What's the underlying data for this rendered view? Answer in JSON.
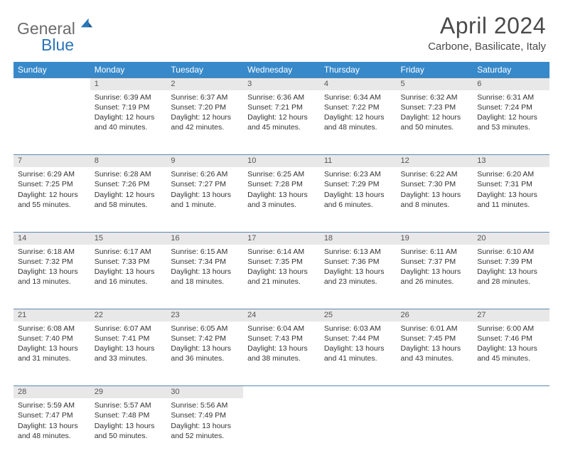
{
  "logo": {
    "text1": "General",
    "text2": "Blue"
  },
  "title": "April 2024",
  "location": "Carbone, Basilicate, Italy",
  "colors": {
    "header_bg": "#3789ca",
    "header_fg": "#ffffff",
    "daynum_bg": "#e8e8e8",
    "rule": "#5a88b0",
    "logo_gray": "#6b6b6b",
    "logo_blue": "#2a74b8",
    "text": "#333333"
  },
  "weekdays": [
    "Sunday",
    "Monday",
    "Tuesday",
    "Wednesday",
    "Thursday",
    "Friday",
    "Saturday"
  ],
  "weeks": [
    [
      null,
      {
        "n": "1",
        "sr": "6:39 AM",
        "ss": "7:19 PM",
        "dl": "12 hours and 40 minutes."
      },
      {
        "n": "2",
        "sr": "6:37 AM",
        "ss": "7:20 PM",
        "dl": "12 hours and 42 minutes."
      },
      {
        "n": "3",
        "sr": "6:36 AM",
        "ss": "7:21 PM",
        "dl": "12 hours and 45 minutes."
      },
      {
        "n": "4",
        "sr": "6:34 AM",
        "ss": "7:22 PM",
        "dl": "12 hours and 48 minutes."
      },
      {
        "n": "5",
        "sr": "6:32 AM",
        "ss": "7:23 PM",
        "dl": "12 hours and 50 minutes."
      },
      {
        "n": "6",
        "sr": "6:31 AM",
        "ss": "7:24 PM",
        "dl": "12 hours and 53 minutes."
      }
    ],
    [
      {
        "n": "7",
        "sr": "6:29 AM",
        "ss": "7:25 PM",
        "dl": "12 hours and 55 minutes."
      },
      {
        "n": "8",
        "sr": "6:28 AM",
        "ss": "7:26 PM",
        "dl": "12 hours and 58 minutes."
      },
      {
        "n": "9",
        "sr": "6:26 AM",
        "ss": "7:27 PM",
        "dl": "13 hours and 1 minute."
      },
      {
        "n": "10",
        "sr": "6:25 AM",
        "ss": "7:28 PM",
        "dl": "13 hours and 3 minutes."
      },
      {
        "n": "11",
        "sr": "6:23 AM",
        "ss": "7:29 PM",
        "dl": "13 hours and 6 minutes."
      },
      {
        "n": "12",
        "sr": "6:22 AM",
        "ss": "7:30 PM",
        "dl": "13 hours and 8 minutes."
      },
      {
        "n": "13",
        "sr": "6:20 AM",
        "ss": "7:31 PM",
        "dl": "13 hours and 11 minutes."
      }
    ],
    [
      {
        "n": "14",
        "sr": "6:18 AM",
        "ss": "7:32 PM",
        "dl": "13 hours and 13 minutes."
      },
      {
        "n": "15",
        "sr": "6:17 AM",
        "ss": "7:33 PM",
        "dl": "13 hours and 16 minutes."
      },
      {
        "n": "16",
        "sr": "6:15 AM",
        "ss": "7:34 PM",
        "dl": "13 hours and 18 minutes."
      },
      {
        "n": "17",
        "sr": "6:14 AM",
        "ss": "7:35 PM",
        "dl": "13 hours and 21 minutes."
      },
      {
        "n": "18",
        "sr": "6:13 AM",
        "ss": "7:36 PM",
        "dl": "13 hours and 23 minutes."
      },
      {
        "n": "19",
        "sr": "6:11 AM",
        "ss": "7:37 PM",
        "dl": "13 hours and 26 minutes."
      },
      {
        "n": "20",
        "sr": "6:10 AM",
        "ss": "7:39 PM",
        "dl": "13 hours and 28 minutes."
      }
    ],
    [
      {
        "n": "21",
        "sr": "6:08 AM",
        "ss": "7:40 PM",
        "dl": "13 hours and 31 minutes."
      },
      {
        "n": "22",
        "sr": "6:07 AM",
        "ss": "7:41 PM",
        "dl": "13 hours and 33 minutes."
      },
      {
        "n": "23",
        "sr": "6:05 AM",
        "ss": "7:42 PM",
        "dl": "13 hours and 36 minutes."
      },
      {
        "n": "24",
        "sr": "6:04 AM",
        "ss": "7:43 PM",
        "dl": "13 hours and 38 minutes."
      },
      {
        "n": "25",
        "sr": "6:03 AM",
        "ss": "7:44 PM",
        "dl": "13 hours and 41 minutes."
      },
      {
        "n": "26",
        "sr": "6:01 AM",
        "ss": "7:45 PM",
        "dl": "13 hours and 43 minutes."
      },
      {
        "n": "27",
        "sr": "6:00 AM",
        "ss": "7:46 PM",
        "dl": "13 hours and 45 minutes."
      }
    ],
    [
      {
        "n": "28",
        "sr": "5:59 AM",
        "ss": "7:47 PM",
        "dl": "13 hours and 48 minutes."
      },
      {
        "n": "29",
        "sr": "5:57 AM",
        "ss": "7:48 PM",
        "dl": "13 hours and 50 minutes."
      },
      {
        "n": "30",
        "sr": "5:56 AM",
        "ss": "7:49 PM",
        "dl": "13 hours and 52 minutes."
      },
      null,
      null,
      null,
      null
    ]
  ],
  "labels": {
    "sunrise": "Sunrise:",
    "sunset": "Sunset:",
    "daylight": "Daylight:"
  }
}
